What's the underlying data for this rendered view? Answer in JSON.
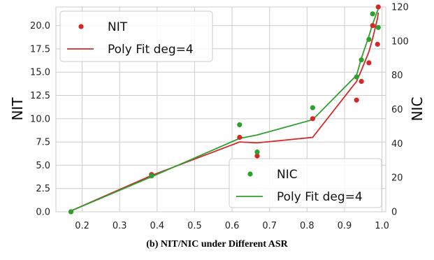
{
  "caption": "(b) NIT/NIC under Different ASR",
  "colors": {
    "nit": "#d62728",
    "nic": "#2ca02c"
  },
  "chart_data": {
    "type": "scatter",
    "xlabel": "",
    "ylabel_left": "NIT",
    "ylabel_right": "NIC",
    "xlim": [
      0.13,
      1.01
    ],
    "ylim_left": [
      0,
      22
    ],
    "ylim_right": [
      0,
      120
    ],
    "xticks": [
      "0.2",
      "0.3",
      "0.4",
      "0.5",
      "0.6",
      "0.7",
      "0.8",
      "0.9",
      "1.0"
    ],
    "yticks_left": [
      "0.0",
      "2.5",
      "5.0",
      "7.5",
      "10.0",
      "12.5",
      "15.0",
      "17.5",
      "20.0"
    ],
    "yticks_right": [
      "0",
      "20",
      "40",
      "60",
      "80",
      "100",
      "120"
    ],
    "grid": true,
    "series": [
      {
        "name": "NIT",
        "axis": "left",
        "x": [
          0.17,
          0.385,
          0.62,
          0.667,
          0.815,
          0.932,
          0.945,
          0.965,
          0.975,
          0.988,
          0.99
        ],
        "values": [
          0,
          4,
          8,
          6,
          10,
          12,
          14,
          16,
          20,
          18,
          22
        ]
      },
      {
        "name": "NIC",
        "axis": "right",
        "x": [
          0.17,
          0.385,
          0.62,
          0.667,
          0.815,
          0.932,
          0.945,
          0.965,
          0.975,
          0.99
        ],
        "values": [
          0,
          21,
          51,
          35,
          61,
          79,
          89,
          101,
          116,
          108
        ]
      }
    ],
    "fits": [
      {
        "name": "Poly Fit deg=4",
        "axis": "left",
        "x": [
          0.17,
          0.385,
          0.62,
          0.667,
          0.815,
          0.932,
          0.945,
          0.965,
          0.975,
          0.988,
          0.99
        ],
        "values": [
          0.1,
          3.9,
          7.5,
          7.4,
          8.0,
          14.0,
          15.2,
          17.2,
          18.6,
          20.8,
          21.4
        ]
      },
      {
        "name": "Poly Fit deg=4",
        "axis": "right",
        "x": [
          0.17,
          0.385,
          0.62,
          0.667,
          0.815,
          0.932,
          0.945,
          0.965,
          0.975,
          0.99
        ],
        "values": [
          0.5,
          20.5,
          43,
          45,
          54,
          80,
          90,
          103,
          110,
          119
        ]
      }
    ],
    "legends": [
      {
        "position": "upper-left",
        "entries": [
          {
            "label": "NIT",
            "kind": "marker",
            "series": "nit"
          },
          {
            "label": "Poly Fit deg=4",
            "kind": "line",
            "series": "nit"
          }
        ]
      },
      {
        "position": "lower-right",
        "entries": [
          {
            "label": "NIC",
            "kind": "marker",
            "series": "nic"
          },
          {
            "label": "Poly Fit deg=4",
            "kind": "line",
            "series": "nic"
          }
        ]
      }
    ]
  }
}
